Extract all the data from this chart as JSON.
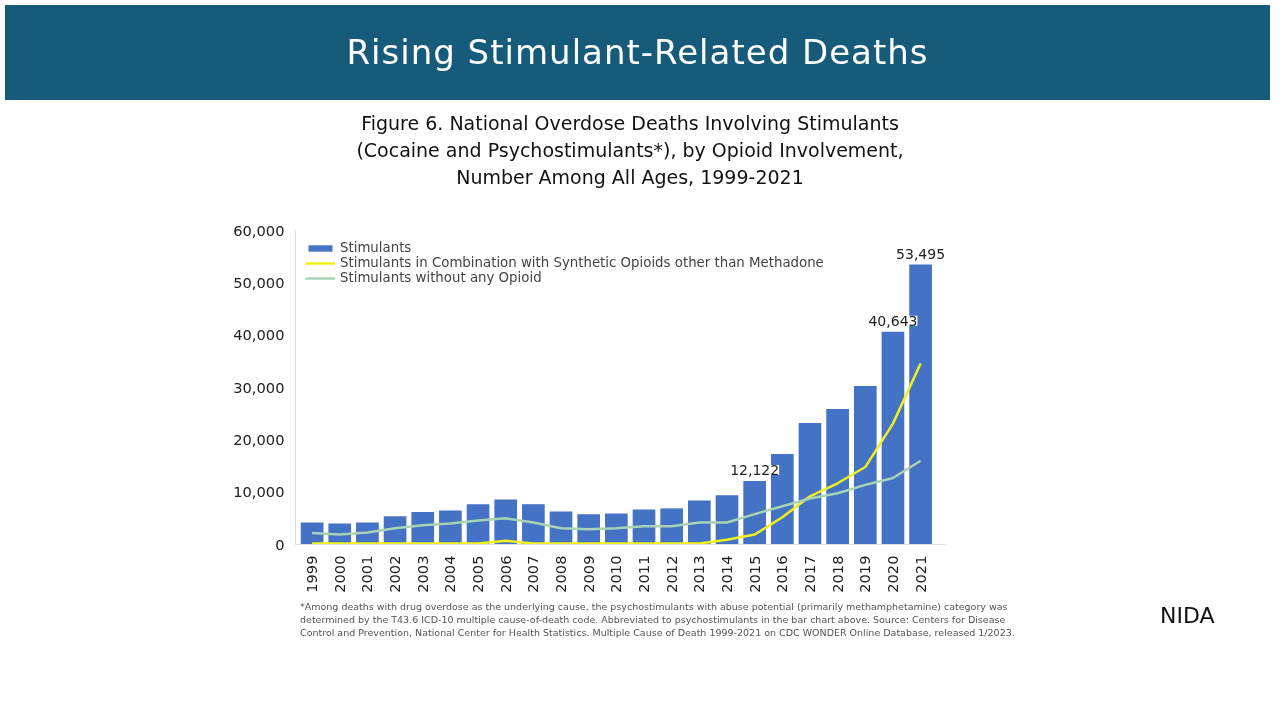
{
  "chart_data": {
    "type": "bar",
    "title": "Rising Stimulant-Related Deaths",
    "subtitle": "Figure 6. National Overdose Deaths Involving Stimulants (Cocaine and Psychostimulants*), by Opioid Involvement, Number Among All Ages, 1999-2021",
    "categories": [
      "1999",
      "2000",
      "2001",
      "2002",
      "2003",
      "2004",
      "2005",
      "2006",
      "2007",
      "2008",
      "2009",
      "2010",
      "2011",
      "2012",
      "2013",
      "2014",
      "2015",
      "2016",
      "2017",
      "2018",
      "2019",
      "2020",
      "2021"
    ],
    "series": [
      {
        "name": "Stimulants",
        "color": "#4472c4",
        "values": [
          4200,
          4000,
          4200,
          5400,
          6200,
          6500,
          7700,
          8600,
          7700,
          6300,
          5800,
          5900,
          6700,
          6900,
          8400,
          9400,
          12122,
          17300,
          23200,
          25900,
          30300,
          40643,
          53495
        ],
        "value_labels": [
          null,
          null,
          null,
          null,
          null,
          null,
          null,
          null,
          null,
          null,
          null,
          null,
          null,
          null,
          null,
          null,
          "12,122",
          null,
          null,
          null,
          null,
          "40,643",
          "53,495"
        ]
      },
      {
        "name": "Stimulants in Combination with Synthetic Opioids other than Methadone",
        "type": "line",
        "color": "#f2f01c",
        "values": [
          200,
          200,
          200,
          200,
          200,
          200,
          200,
          700,
          200,
          200,
          200,
          200,
          200,
          200,
          200,
          900,
          1900,
          5200,
          9200,
          11700,
          14800,
          23100,
          34600
        ]
      },
      {
        "name": "Stimulants without any Opioid",
        "type": "line",
        "color": "#a9d3b5",
        "values": [
          2200,
          1900,
          2300,
          3100,
          3700,
          4000,
          4600,
          5000,
          4200,
          3100,
          2900,
          3100,
          3500,
          3500,
          4200,
          4200,
          5800,
          7300,
          8800,
          9800,
          11400,
          12700,
          16000
        ]
      }
    ],
    "ylim": [
      0,
      60000
    ],
    "yticks": [
      {
        "value": 0,
        "label": "0"
      },
      {
        "value": 10000,
        "label": "10,000"
      },
      {
        "value": 20000,
        "label": "20,000"
      },
      {
        "value": 30000,
        "label": "30,000"
      },
      {
        "value": 40000,
        "label": "40,000"
      },
      {
        "value": 50000,
        "label": "50,000"
      },
      {
        "value": 60000,
        "label": "60,000"
      }
    ],
    "legend": "top left",
    "grid": false,
    "annotations": [
      "*Among deaths with drug overdose as the underlying cause, the psychostimulants with abuse potential (primarily methamphetamine) category was determined by the T43.6 ICD-10 multiple cause-of-death code. Abbreviated to psychostimulants in the bar chart above. Source: Centers for Disease Control and Prevention, National Center for Health Statistics. Multiple Cause of Death 1999-2021 on CDC WONDER Online Database, released 1/2023.",
      "NIDA"
    ]
  }
}
